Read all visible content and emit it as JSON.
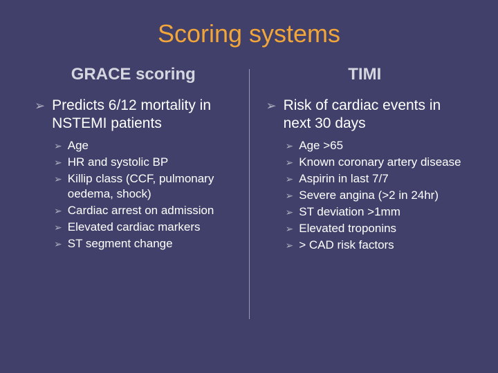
{
  "colors": {
    "background": "#40406a",
    "title": "#f2a63a",
    "heading": "#d6d6e0",
    "text": "#ffffff",
    "bullet": "#b0b0c0",
    "divider": "#9a9ab8"
  },
  "typography": {
    "title_fontsize": 36,
    "heading_fontsize": 24,
    "main_fontsize": 21,
    "sub_fontsize": 17,
    "font_family": "Arial"
  },
  "bullet_glyph": "➢",
  "title": "Scoring systems",
  "left": {
    "heading": "GRACE scoring",
    "main": "Predicts 6/12 mortality in NSTEMI patients",
    "sub": [
      "Age",
      "HR and systolic BP",
      "Killip class (CCF, pulmonary oedema, shock)",
      "Cardiac arrest on admission",
      "Elevated cardiac markers",
      "ST segment change"
    ]
  },
  "right": {
    "heading": "TIMI",
    "main": "Risk of cardiac events in next 30 days",
    "sub": [
      "Age >65",
      "Known coronary artery disease",
      "Aspirin in last 7/7",
      "Severe angina (>2 in 24hr)",
      "ST deviation >1mm",
      "Elevated troponins",
      "> CAD risk factors"
    ]
  }
}
